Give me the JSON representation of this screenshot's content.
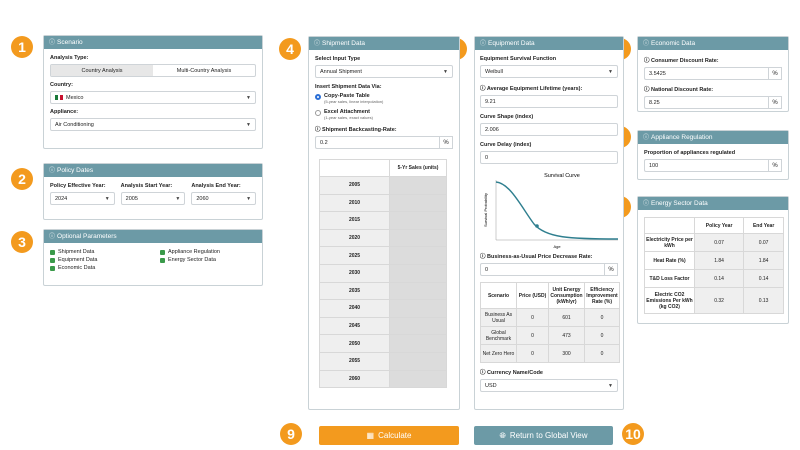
{
  "badges": [
    "1",
    "2",
    "3",
    "4",
    "5",
    "6",
    "7",
    "8",
    "9",
    "10"
  ],
  "info_glyph": "ⓘ",
  "scenario": {
    "title": "Scenario",
    "analysis_type_label": "Analysis Type:",
    "analysis_options": [
      "Country Analysis",
      "Multi-Country Analysis"
    ],
    "country_label": "Country:",
    "country_value": "Mexico",
    "appliance_label": "Appliance:",
    "appliance_value": "Air Conditioning"
  },
  "policy": {
    "title": "Policy Dates",
    "labels": [
      "Policy Effective Year:",
      "Analysis Start Year:",
      "Analysis End Year:"
    ],
    "values": [
      "2024",
      "2005",
      "2060"
    ]
  },
  "optional": {
    "title": "Optional Parameters",
    "items_left": [
      "Shipment Data",
      "Equipment Data",
      "Economic Data"
    ],
    "items_right": [
      "Appliance Regulation",
      "Energy Sector Data"
    ]
  },
  "shipment": {
    "title": "Shipment Data",
    "select_label": "Select Input Type",
    "select_value": "Annual Shipment",
    "insert_label": "Insert Shipment Data Via:",
    "opt1_title": "Copy-Paste Table",
    "opt1_sub": "(5-year sales, linear interpolation)",
    "opt2_title": "Excel Attachment",
    "opt2_sub": "(1-year sales, exact values)",
    "backcast_label": "Shipment Backcasting-Rate:",
    "backcast_value": "0.2",
    "unit": "%",
    "col_header": "5-Yr Sales (units)",
    "years": [
      "2005",
      "2010",
      "2015",
      "2020",
      "2025",
      "2030",
      "2035",
      "2040",
      "2045",
      "2050",
      "2055",
      "2060"
    ]
  },
  "equipment": {
    "title": "Equipment Data",
    "survival_label": "Equipment Survival Function",
    "survival_value": "Weibull",
    "lifetime_label": "Average Equipment Lifetime (years):",
    "lifetime_value": "9.21",
    "shape_label": "Curve Shape (index)",
    "shape_value": "2.006",
    "delay_label": "Curve Delay (index)",
    "delay_value": "0",
    "chart_title": "Survival Curve",
    "chart_ylabel": "Survival Probability",
    "chart_xlabel": "Age",
    "bau_label": "Business-as-Usual Price Decrease Rate:",
    "bau_value": "0",
    "unit": "%",
    "table_headers": [
      "Scenario",
      "Price (USD)",
      "Unit Energy Consumption (kWh/yr)",
      "Efficiency Improvement Rate (%)"
    ],
    "table_rows": [
      [
        "Business As Usual",
        "0",
        "601",
        "0"
      ],
      [
        "Global Benchmark",
        "0",
        "473",
        "0"
      ],
      [
        "Net Zero Hero",
        "0",
        "300",
        "0"
      ]
    ],
    "currency_label": "Currency Name/Code",
    "currency_value": "USD"
  },
  "economic": {
    "title": "Economic Data",
    "consumer_label": "Consumer Discount Rate:",
    "consumer_value": "3.5425",
    "national_label": "National Discount Rate:",
    "national_value": "8.25",
    "unit": "%"
  },
  "regulation": {
    "title": "Appliance Regulation",
    "label": "Proportion of appliances regulated",
    "value": "100",
    "unit": "%"
  },
  "energy": {
    "title": "Energy Sector Data",
    "headers": [
      "",
      "Policy Year",
      "End Year"
    ],
    "rows": [
      [
        "Electricity Price per kWh",
        "0.07",
        "0.07"
      ],
      [
        "Heat Rate (%)",
        "1.84",
        "1.84"
      ],
      [
        "T&D Loss Factor",
        "0.14",
        "0.14"
      ],
      [
        "Electric CO2 Emissions Per kWh (kg CO2)",
        "0.32",
        "0.13"
      ]
    ]
  },
  "buttons": {
    "calculate": "Calculate",
    "return": "Return to Global View"
  },
  "colors": {
    "header": "#6c9aa6",
    "badge": "#f39a1e",
    "calculate": "#f39a1e",
    "return": "#6c9aa6",
    "check": "#3a9a4a"
  }
}
